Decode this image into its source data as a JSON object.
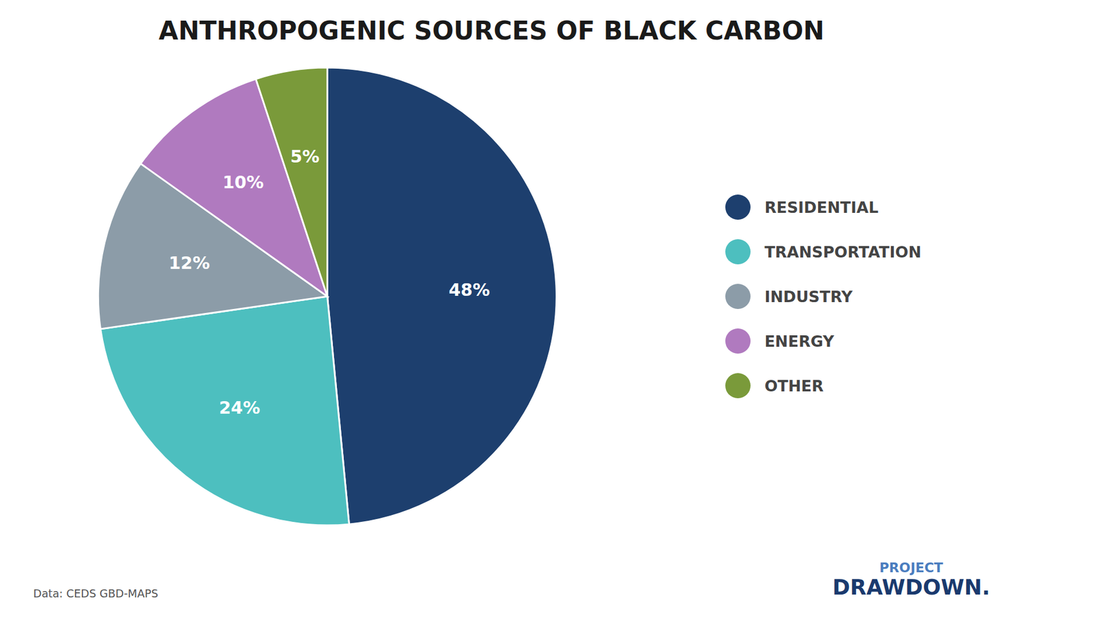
{
  "chart_data": {
    "type": "pie",
    "title": "ANTHROPOGENIC SOURCES OF BLACK CARBON",
    "categories": [
      "RESIDENTIAL",
      "TRANSPORTATION",
      "INDUSTRY",
      "ENERGY",
      "OTHER"
    ],
    "values": [
      48,
      24,
      12,
      10,
      5
    ],
    "value_labels": [
      "48%",
      "24%",
      "12%",
      "10%",
      "5%"
    ],
    "colors": [
      "#1d3f6e",
      "#4dbfbf",
      "#8c9ca8",
      "#b07abf",
      "#7a9a3a"
    ],
    "data_labels": true,
    "legend": "right",
    "annotations": [
      "Data: CEDS GBD-MAPS",
      "PROJECT",
      "DRAWDOWN."
    ]
  }
}
